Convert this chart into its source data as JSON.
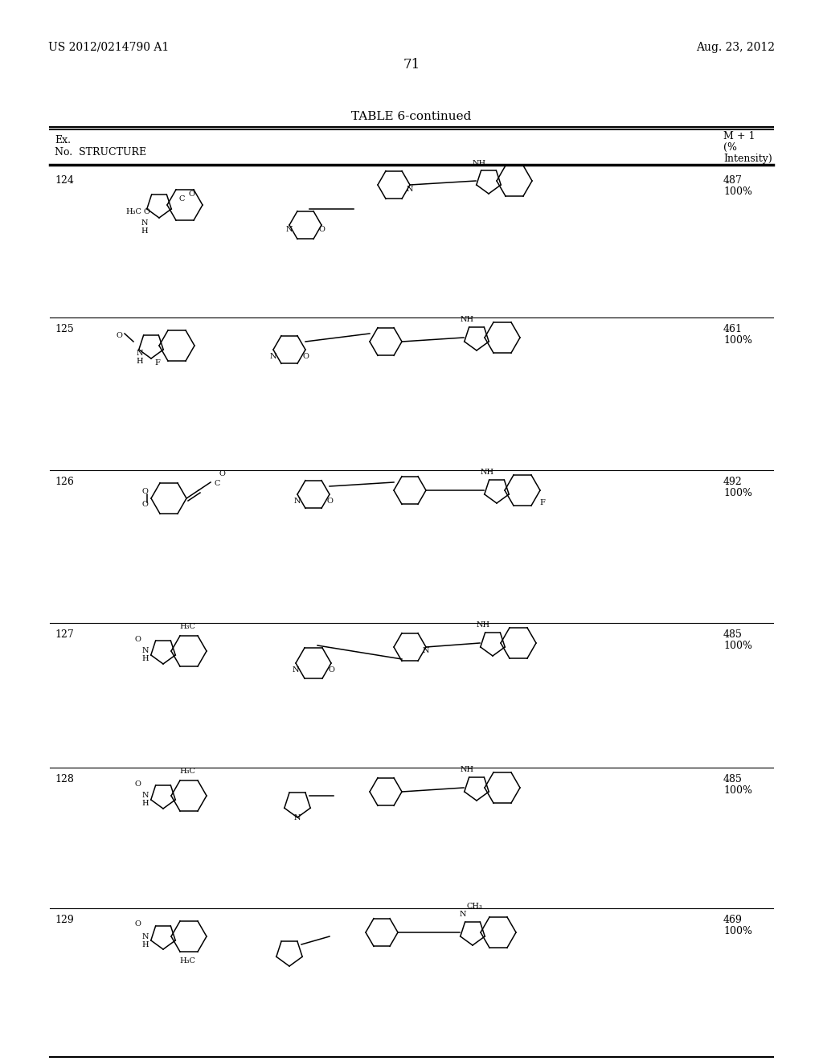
{
  "page_header_left": "US 2012/0214790 A1",
  "page_header_right": "Aug. 23, 2012",
  "page_number": "71",
  "table_title": "TABLE 6-continued",
  "col_header_left": "Ex.\nNo.  STRUCTURE",
  "col_header_right": "M + 1\n(%\nIntensity)",
  "background_color": "#ffffff",
  "text_color": "#000000",
  "entries": [
    {
      "num": "124",
      "value": "487\n100%"
    },
    {
      "num": "125",
      "value": "461\n100%"
    },
    {
      "num": "126",
      "value": "492\n100%"
    },
    {
      "num": "127",
      "value": "485\n100%"
    },
    {
      "num": "128",
      "value": "485\n100%"
    },
    {
      "num": "129",
      "value": "469\n100%"
    }
  ],
  "figsize": [
    10.24,
    13.2
  ],
  "dpi": 100
}
